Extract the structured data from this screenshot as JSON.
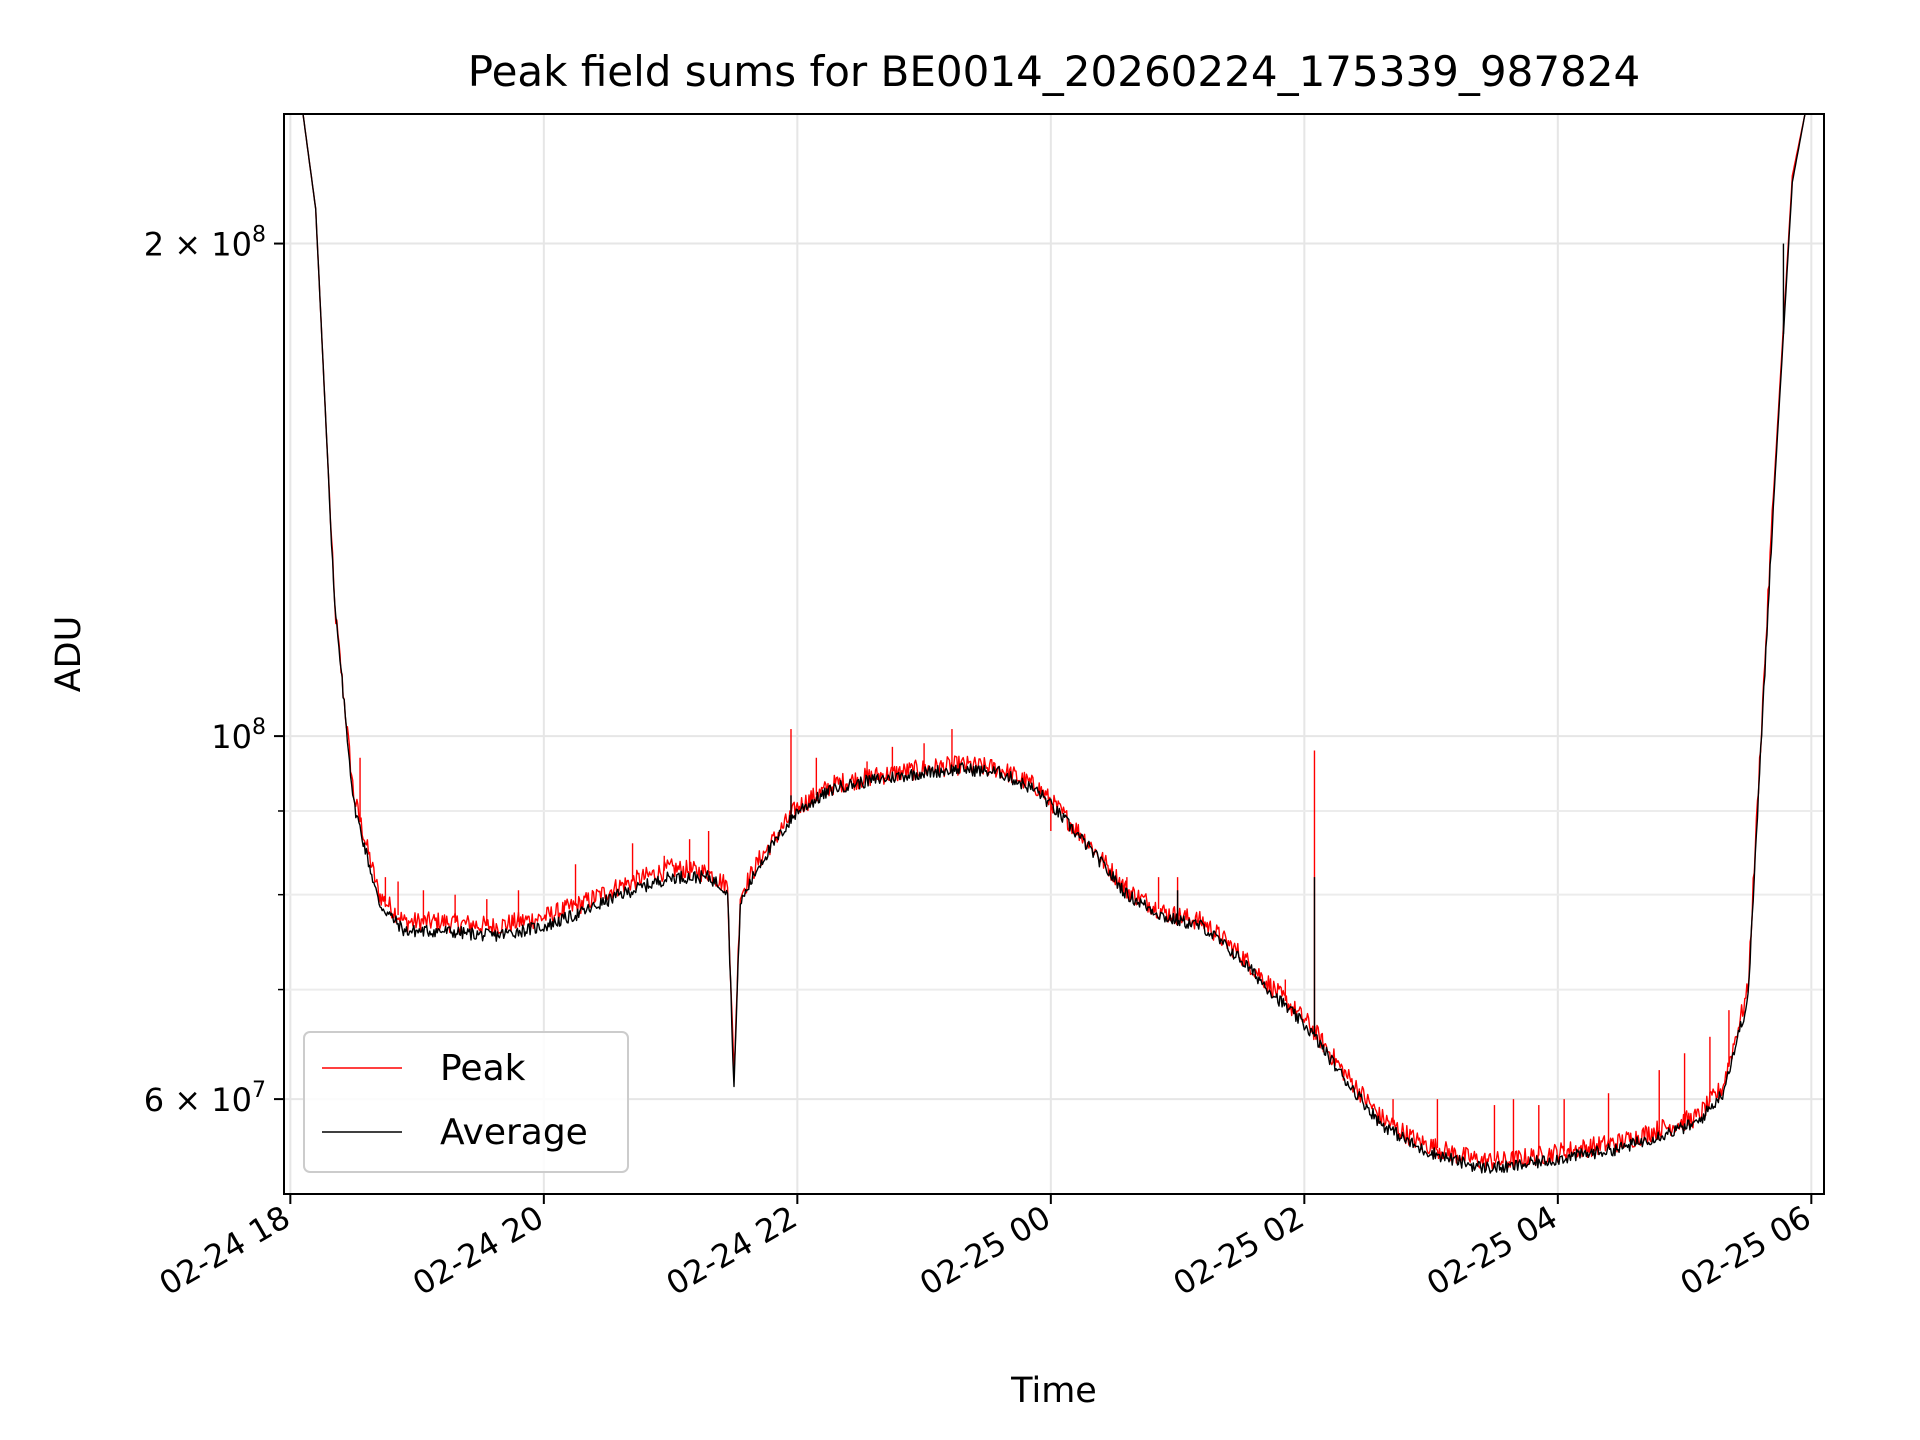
{
  "chart_data": {
    "type": "line",
    "title": "Peak field sums for BE0014_20260224_175339_987824",
    "xlabel": "Time",
    "ylabel": "ADU",
    "yscale": "log",
    "ylim": [
      52500000,
      240000000
    ],
    "xlim_hours": [
      -0.05,
      12.1
    ],
    "x_unit": "hours since 02-24 18:00",
    "grid": true,
    "legend_position": "lower-left",
    "x_ticks": [
      {
        "hour": 0,
        "label": "02-24 18"
      },
      {
        "hour": 2,
        "label": "02-24 20"
      },
      {
        "hour": 4,
        "label": "02-24 22"
      },
      {
        "hour": 6,
        "label": "02-25 00"
      },
      {
        "hour": 8,
        "label": "02-25 02"
      },
      {
        "hour": 10,
        "label": "02-25 04"
      },
      {
        "hour": 12,
        "label": "02-25 06"
      }
    ],
    "y_major_ticks": [
      {
        "value": 60000000,
        "mantissa": "6",
        "exponent": "7"
      },
      {
        "value": 100000000,
        "mantissa": "",
        "exponent": "8"
      },
      {
        "value": 200000000,
        "mantissa": "2",
        "exponent": "8"
      }
    ],
    "y_minor_ticks": [
      70000000,
      80000000,
      90000000
    ],
    "series": [
      {
        "name": "Peak",
        "color": "#ff0000",
        "x_hours": [
          -0.05,
          0.1,
          0.2,
          0.35,
          0.5,
          0.7,
          0.9,
          1.2,
          1.6,
          2.0,
          2.3,
          2.6,
          3.0,
          3.3,
          3.45,
          3.5,
          3.55,
          3.7,
          4.0,
          4.3,
          4.6,
          5.0,
          5.3,
          5.6,
          5.9,
          6.1,
          6.3,
          6.6,
          6.9,
          7.2,
          7.5,
          7.8,
          8.05,
          8.3,
          8.6,
          8.9,
          9.2,
          9.4,
          9.6,
          9.9,
          10.2,
          10.5,
          10.8,
          11.1,
          11.3,
          11.5,
          11.7,
          11.85,
          11.95,
          12.1
        ],
        "y": [
          240000000,
          240000000,
          210000000,
          120000000,
          92000000,
          80000000,
          77000000,
          77000000,
          76500000,
          77500000,
          79000000,
          81000000,
          83000000,
          82500000,
          81000000,
          62000000,
          80000000,
          84000000,
          90500000,
          93500000,
          94500000,
          95500000,
          96000000,
          95500000,
          93000000,
          89500000,
          86000000,
          80500000,
          78000000,
          77000000,
          73500000,
          69500000,
          66500000,
          62500000,
          58500000,
          56500000,
          55500000,
          55000000,
          55000000,
          55500000,
          56000000,
          56500000,
          57500000,
          58500000,
          61000000,
          70000000,
          140000000,
          220000000,
          240000000,
          240000000
        ],
        "spikes": [
          {
            "x": 0.55,
            "y": 97000000
          },
          {
            "x": 0.75,
            "y": 82000000
          },
          {
            "x": 0.85,
            "y": 81500000
          },
          {
            "x": 1.05,
            "y": 80500000
          },
          {
            "x": 1.3,
            "y": 80000000
          },
          {
            "x": 1.55,
            "y": 79500000
          },
          {
            "x": 1.8,
            "y": 80500000
          },
          {
            "x": 2.25,
            "y": 83500000
          },
          {
            "x": 2.7,
            "y": 86000000
          },
          {
            "x": 2.95,
            "y": 84500000
          },
          {
            "x": 3.15,
            "y": 86500000
          },
          {
            "x": 3.3,
            "y": 87500000
          },
          {
            "x": 3.95,
            "y": 101000000
          },
          {
            "x": 4.15,
            "y": 97000000
          },
          {
            "x": 4.55,
            "y": 96500000
          },
          {
            "x": 4.75,
            "y": 98500000
          },
          {
            "x": 5.0,
            "y": 99000000
          },
          {
            "x": 5.22,
            "y": 101000000
          },
          {
            "x": 6.0,
            "y": 87500000
          },
          {
            "x": 6.6,
            "y": 82000000
          },
          {
            "x": 6.85,
            "y": 82000000
          },
          {
            "x": 7.0,
            "y": 82000000
          },
          {
            "x": 7.4,
            "y": 75000000
          },
          {
            "x": 7.85,
            "y": 71000000
          },
          {
            "x": 8.08,
            "y": 98000000
          },
          {
            "x": 8.7,
            "y": 60000000
          },
          {
            "x": 9.05,
            "y": 60000000
          },
          {
            "x": 9.5,
            "y": 59500000
          },
          {
            "x": 9.65,
            "y": 60000000
          },
          {
            "x": 9.85,
            "y": 59500000
          },
          {
            "x": 10.05,
            "y": 60000000
          },
          {
            "x": 10.4,
            "y": 60500000
          },
          {
            "x": 10.8,
            "y": 62500000
          },
          {
            "x": 11.0,
            "y": 64000000
          },
          {
            "x": 11.2,
            "y": 65500000
          },
          {
            "x": 11.35,
            "y": 68000000
          }
        ]
      },
      {
        "name": "Average",
        "color": "#000000",
        "x_hours": [
          -0.05,
          0.1,
          0.2,
          0.35,
          0.5,
          0.7,
          0.9,
          1.2,
          1.6,
          2.0,
          2.3,
          2.6,
          3.0,
          3.3,
          3.45,
          3.5,
          3.55,
          3.7,
          4.0,
          4.3,
          4.6,
          5.0,
          5.3,
          5.6,
          5.9,
          6.1,
          6.3,
          6.6,
          6.9,
          7.2,
          7.5,
          7.8,
          8.05,
          8.3,
          8.6,
          8.9,
          9.2,
          9.4,
          9.6,
          9.9,
          10.2,
          10.5,
          10.8,
          11.1,
          11.3,
          11.5,
          11.7,
          11.85,
          11.95,
          12.1
        ],
        "y": [
          240000000,
          240000000,
          210000000,
          120000000,
          91000000,
          79000000,
          76000000,
          76000000,
          75500000,
          76500000,
          78000000,
          80000000,
          82000000,
          82000000,
          80500000,
          61000000,
          79000000,
          83500000,
          90000000,
          93000000,
          94000000,
          95000000,
          95500000,
          95000000,
          92500000,
          89000000,
          85500000,
          80000000,
          77500000,
          76500000,
          73000000,
          69000000,
          66000000,
          62000000,
          58000000,
          56000000,
          55000000,
          54500000,
          54500000,
          55000000,
          55500000,
          56000000,
          57000000,
          58000000,
          60500000,
          69000000,
          138000000,
          218000000,
          240000000,
          240000000
        ],
        "spikes": [
          {
            "x": 8.08,
            "y": 82000000
          },
          {
            "x": 7.0,
            "y": 80500000
          },
          {
            "x": 3.95,
            "y": 92000000
          },
          {
            "x": 11.78,
            "y": 200000000
          }
        ]
      }
    ]
  }
}
